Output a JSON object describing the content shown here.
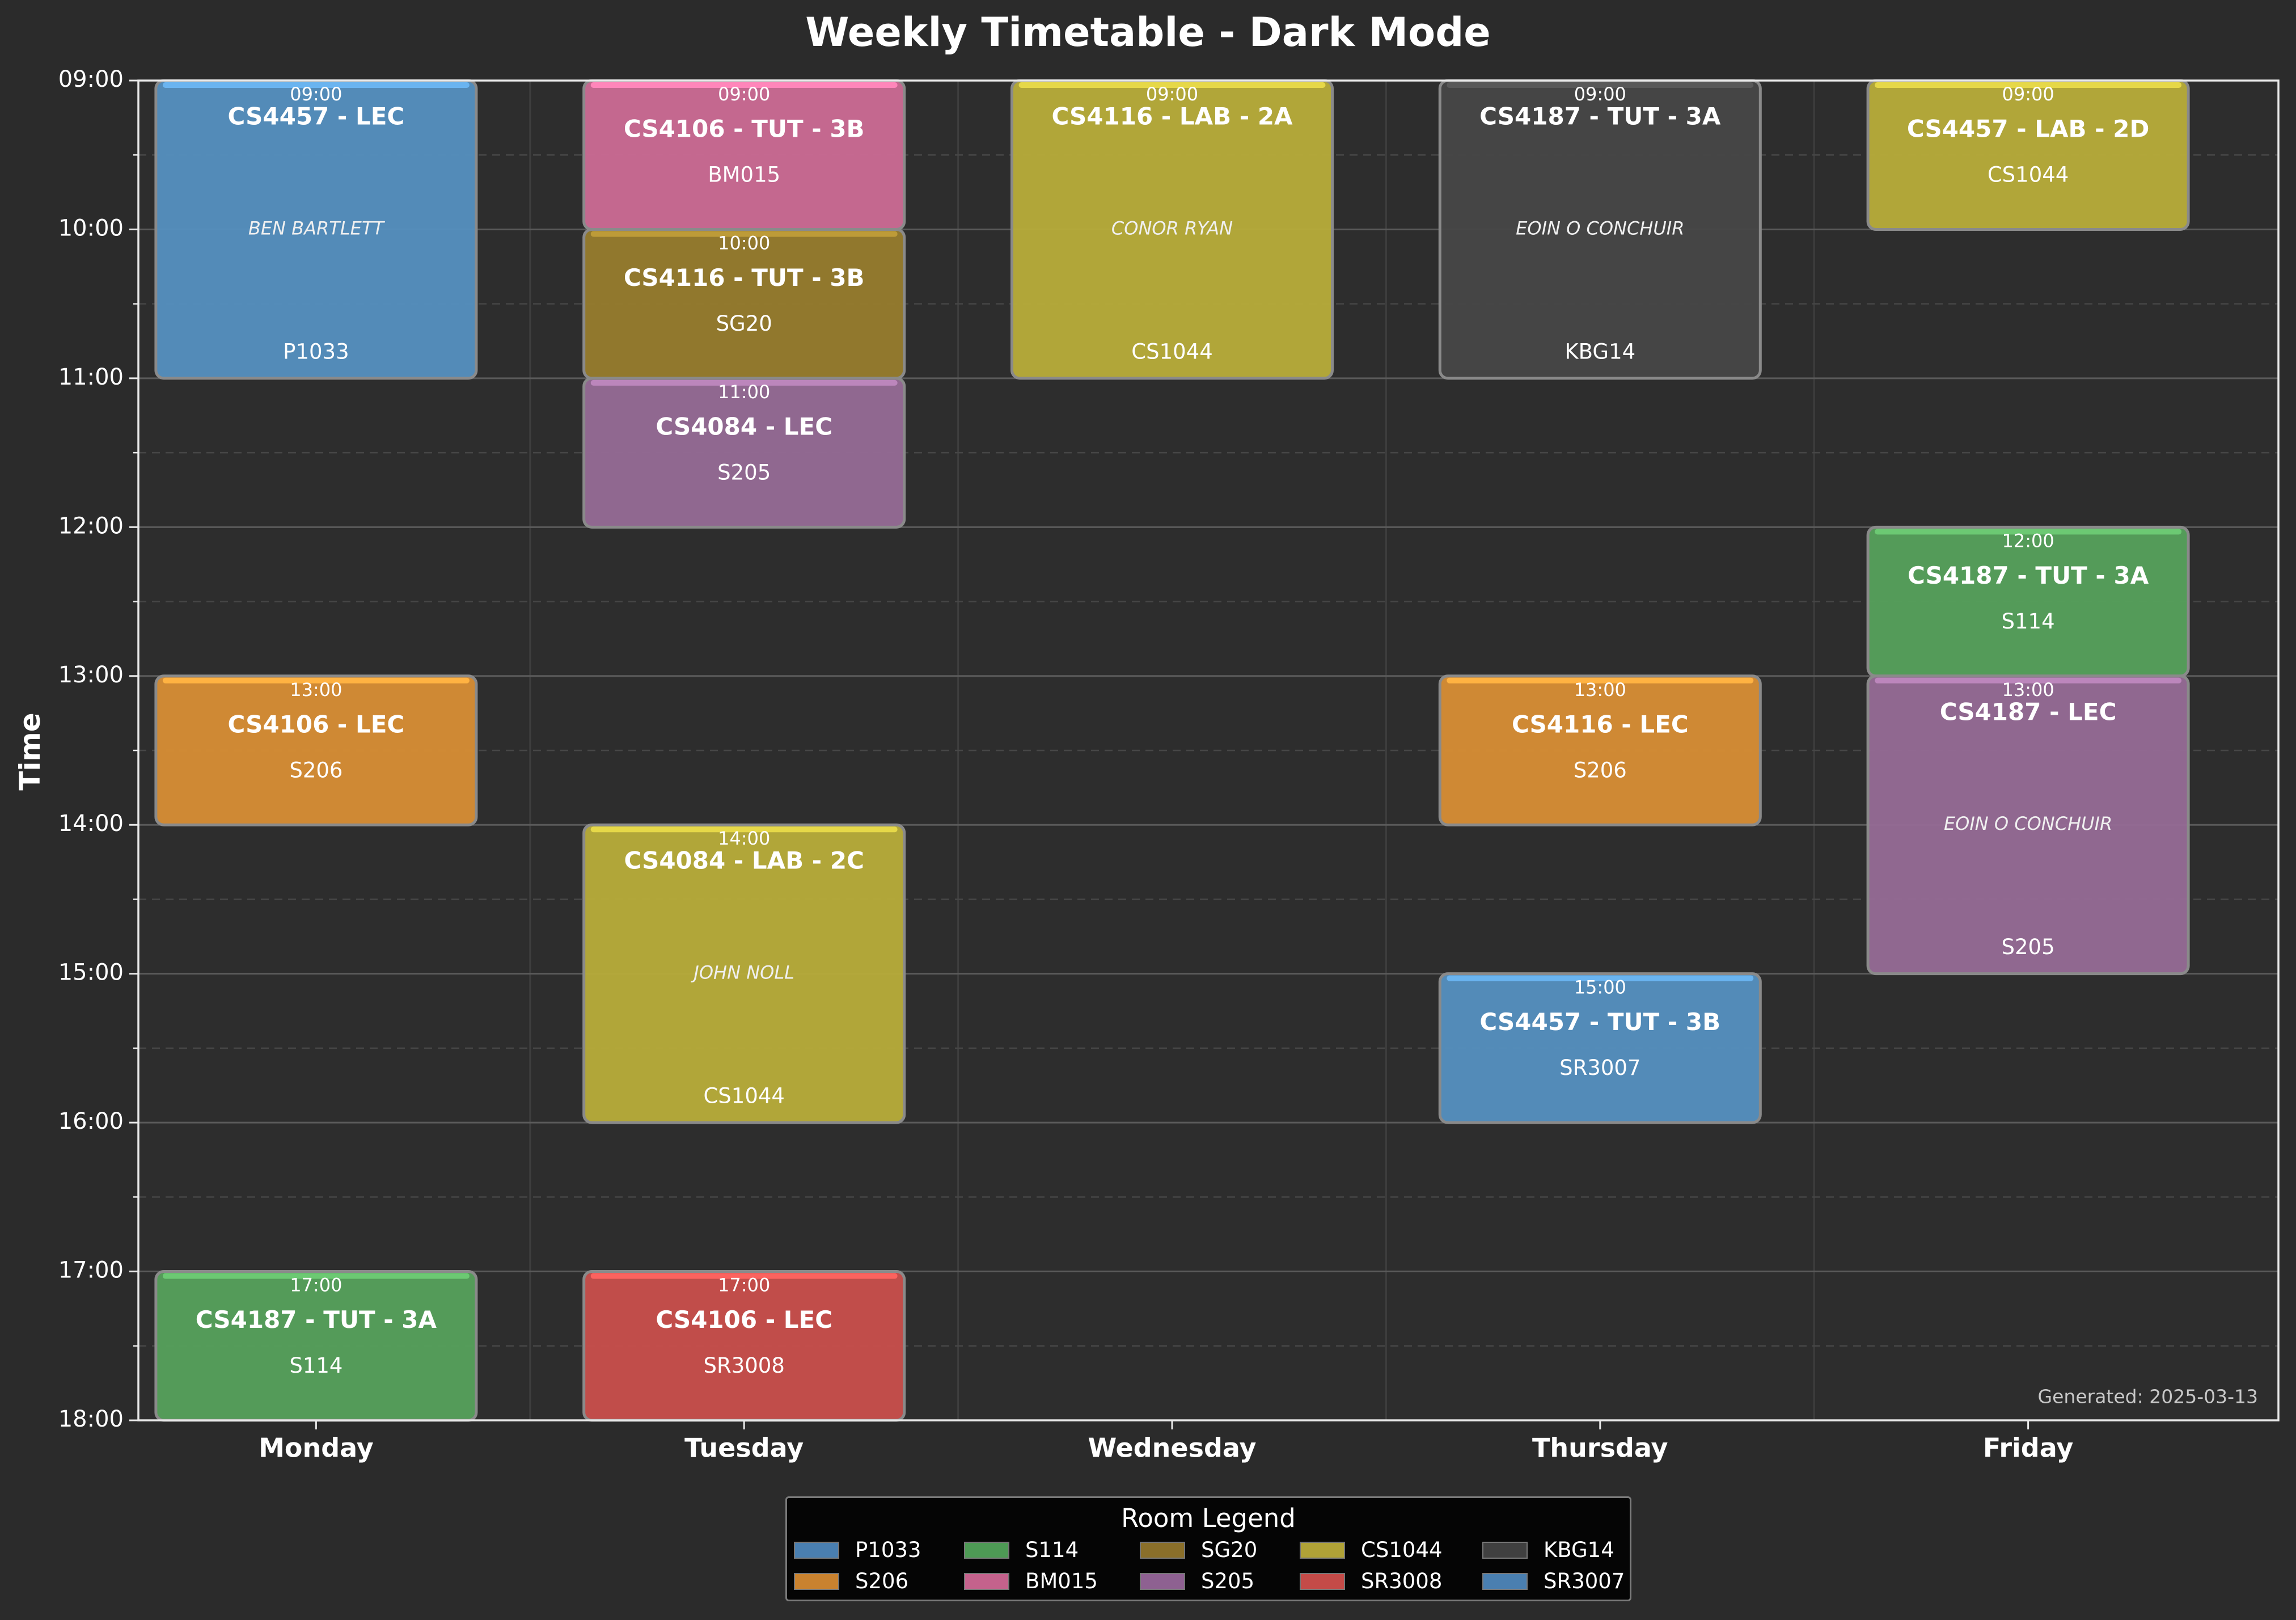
{
  "chart_data": {
    "type": "timetable",
    "title": "Weekly Timetable - Dark Mode",
    "ylabel": "Time",
    "days": [
      "Monday",
      "Tuesday",
      "Wednesday",
      "Thursday",
      "Friday"
    ],
    "time_ticks": [
      "09:00",
      "10:00",
      "11:00",
      "12:00",
      "13:00",
      "14:00",
      "15:00",
      "16:00",
      "17:00",
      "18:00"
    ],
    "ylim": [
      9,
      18
    ],
    "grid": true,
    "footer": "Generated: 2025-03-13",
    "legend": {
      "title": "Room Legend",
      "placement": "bottom-center",
      "items": [
        {
          "label": "P1033",
          "color": "#4a7fb0"
        },
        {
          "label": "S206",
          "color": "#c9822f"
        },
        {
          "label": "S114",
          "color": "#4e9a55"
        },
        {
          "label": "BM015",
          "color": "#c4628c"
        },
        {
          "label": "SG20",
          "color": "#8a6f2a"
        },
        {
          "label": "S205",
          "color": "#8e6191"
        },
        {
          "label": "CS1044",
          "color": "#b0a237"
        },
        {
          "label": "SR3008",
          "color": "#c44b48"
        },
        {
          "label": "KBG14",
          "color": "#404040"
        },
        {
          "label": "SR3007",
          "color": "#4a7fb0"
        }
      ]
    },
    "events": [
      {
        "day": 0,
        "start": 9,
        "end": 11,
        "time": "09:00",
        "title": "CS4457 - LEC",
        "lecturer": "BEN BARTLETT",
        "room": "P1033",
        "color": "#5590c0"
      },
      {
        "day": 0,
        "start": 13,
        "end": 14,
        "time": "13:00",
        "title": "CS4106 - LEC",
        "lecturer": "",
        "room": "S206",
        "color": "#d88e35"
      },
      {
        "day": 0,
        "start": 17,
        "end": 18,
        "time": "17:00",
        "title": "CS4187 - TUT - 3A",
        "lecturer": "",
        "room": "S114",
        "color": "#56a15c"
      },
      {
        "day": 1,
        "start": 9,
        "end": 10,
        "time": "09:00",
        "title": "CS4106 - TUT - 3B",
        "lecturer": "",
        "room": "BM015",
        "color": "#cc6b95"
      },
      {
        "day": 1,
        "start": 10,
        "end": 11,
        "time": "10:00",
        "title": "CS4116 - TUT - 3B",
        "lecturer": "",
        "room": "SG20",
        "color": "#977c2d"
      },
      {
        "day": 1,
        "start": 11,
        "end": 12,
        "time": "11:00",
        "title": "CS4084 - LEC",
        "lecturer": "",
        "room": "S205",
        "color": "#966b96"
      },
      {
        "day": 1,
        "start": 14,
        "end": 16,
        "time": "14:00",
        "title": "CS4084 - LAB - 2C",
        "lecturer": "JOHN NOLL",
        "room": "CS1044",
        "color": "#b8ad3a"
      },
      {
        "day": 1,
        "start": 17,
        "end": 18,
        "time": "17:00",
        "title": "CS4106 - LEC",
        "lecturer": "",
        "room": "SR3008",
        "color": "#c94f4c"
      },
      {
        "day": 2,
        "start": 9,
        "end": 11,
        "time": "09:00",
        "title": "CS4116 - LAB - 2A",
        "lecturer": "CONOR RYAN",
        "room": "CS1044",
        "color": "#b8ad3a"
      },
      {
        "day": 3,
        "start": 9,
        "end": 11,
        "time": "09:00",
        "title": "CS4187 - TUT - 3A",
        "lecturer": "EOIN O CONCHUIR",
        "room": "KBG14",
        "color": "#474747"
      },
      {
        "day": 3,
        "start": 13,
        "end": 14,
        "time": "13:00",
        "title": "CS4116 - LEC",
        "lecturer": "",
        "room": "S206",
        "color": "#d88e35"
      },
      {
        "day": 3,
        "start": 15,
        "end": 16,
        "time": "15:00",
        "title": "CS4457 - TUT - 3B",
        "lecturer": "",
        "room": "SR3007",
        "color": "#5590c0"
      },
      {
        "day": 4,
        "start": 9,
        "end": 10,
        "time": "09:00",
        "title": "CS4457 - LAB - 2D",
        "lecturer": "",
        "room": "CS1044",
        "color": "#b8ad3a"
      },
      {
        "day": 4,
        "start": 12,
        "end": 13,
        "time": "12:00",
        "title": "CS4187 - TUT - 3A",
        "lecturer": "",
        "room": "S114",
        "color": "#56a15c"
      },
      {
        "day": 4,
        "start": 13,
        "end": 15,
        "time": "13:00",
        "title": "CS4187 - LEC",
        "lecturer": "EOIN O CONCHUIR",
        "room": "S205",
        "color": "#966b96"
      }
    ]
  }
}
